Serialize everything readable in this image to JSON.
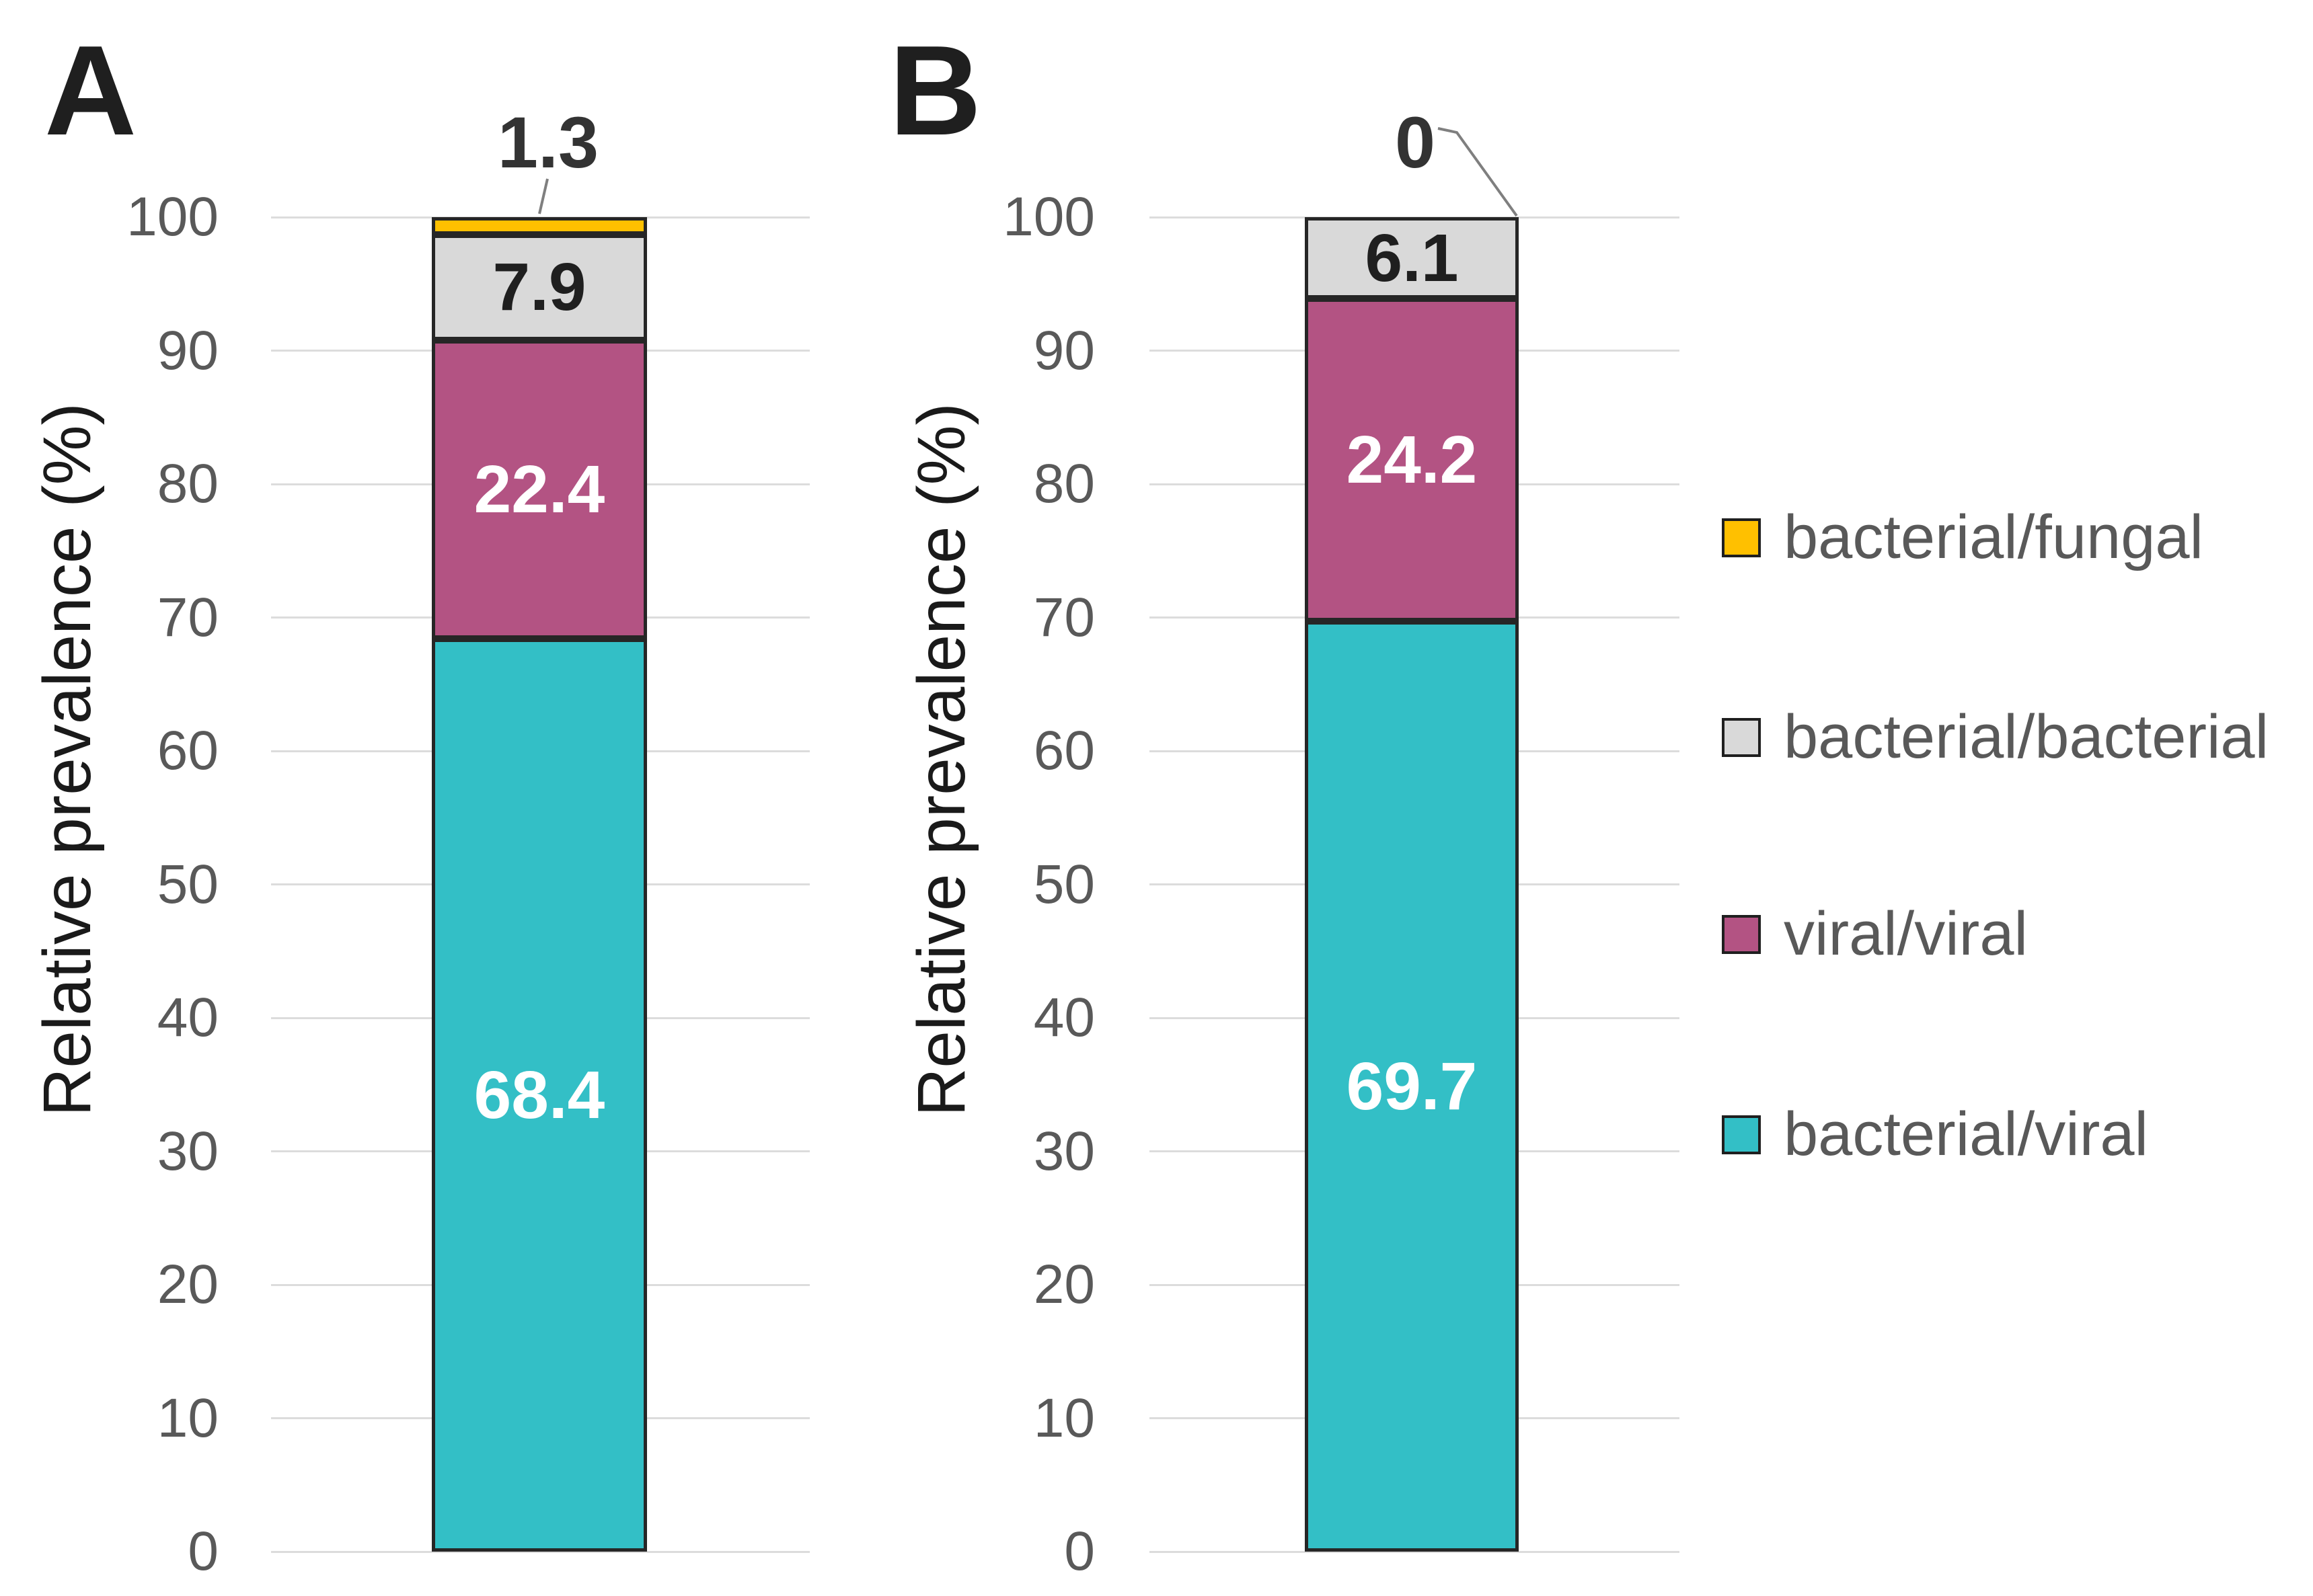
{
  "chart_data": [
    {
      "type": "bar",
      "stacked": true,
      "panel": "A",
      "title": "",
      "xlabel": "",
      "ylabel": "Relative prevalence (%)",
      "ylim": [
        0,
        100
      ],
      "yticks": [
        100,
        90,
        80,
        70,
        60,
        50,
        40,
        30,
        20,
        10,
        0
      ],
      "grid": true,
      "categories": [
        ""
      ],
      "series": [
        {
          "name": "bacterial/viral",
          "value": 68.4,
          "label": "68.4",
          "color": "#33BFC6",
          "label_color": "#FFFFFF",
          "label_placement": "inside"
        },
        {
          "name": "viral/viral",
          "value": 22.4,
          "label": "22.4",
          "color": "#B35383",
          "label_color": "#FFFFFF",
          "label_placement": "inside"
        },
        {
          "name": "bacterial/bacterial",
          "value": 7.9,
          "label": "7.9",
          "color": "#D9D9D9",
          "label_color": "#1F1F1F",
          "label_placement": "inside"
        },
        {
          "name": "bacterial/fungal",
          "value": 1.3,
          "label": "1.3",
          "color": "#FFC000",
          "label_color": "#333333",
          "label_placement": "callout"
        }
      ]
    },
    {
      "type": "bar",
      "stacked": true,
      "panel": "B",
      "title": "",
      "xlabel": "",
      "ylabel": "Relative prevalence (%)",
      "ylim": [
        0,
        100
      ],
      "yticks": [
        100,
        90,
        80,
        70,
        60,
        50,
        40,
        30,
        20,
        10,
        0
      ],
      "grid": true,
      "categories": [
        ""
      ],
      "series": [
        {
          "name": "bacterial/viral",
          "value": 69.7,
          "label": "69.7",
          "color": "#33BFC6",
          "label_color": "#FFFFFF",
          "label_placement": "inside"
        },
        {
          "name": "viral/viral",
          "value": 24.2,
          "label": "24.2",
          "color": "#B35383",
          "label_color": "#FFFFFF",
          "label_placement": "inside"
        },
        {
          "name": "bacterial/bacterial",
          "value": 6.1,
          "label": "6.1",
          "color": "#D9D9D9",
          "label_color": "#1F1F1F",
          "label_placement": "inside"
        },
        {
          "name": "bacterial/fungal",
          "value": 0,
          "label": "0",
          "color": "#FFC000",
          "label_color": "#333333",
          "label_placement": "callout"
        }
      ]
    }
  ],
  "legend": {
    "position": "right",
    "entries": [
      {
        "label": "bacterial/fungal",
        "color": "#FFC000"
      },
      {
        "label": "bacterial/bacterial",
        "color": "#D9D9D9"
      },
      {
        "label": "viral/viral",
        "color": "#B35383"
      },
      {
        "label": "bacterial/viral",
        "color": "#33BFC6"
      }
    ]
  }
}
